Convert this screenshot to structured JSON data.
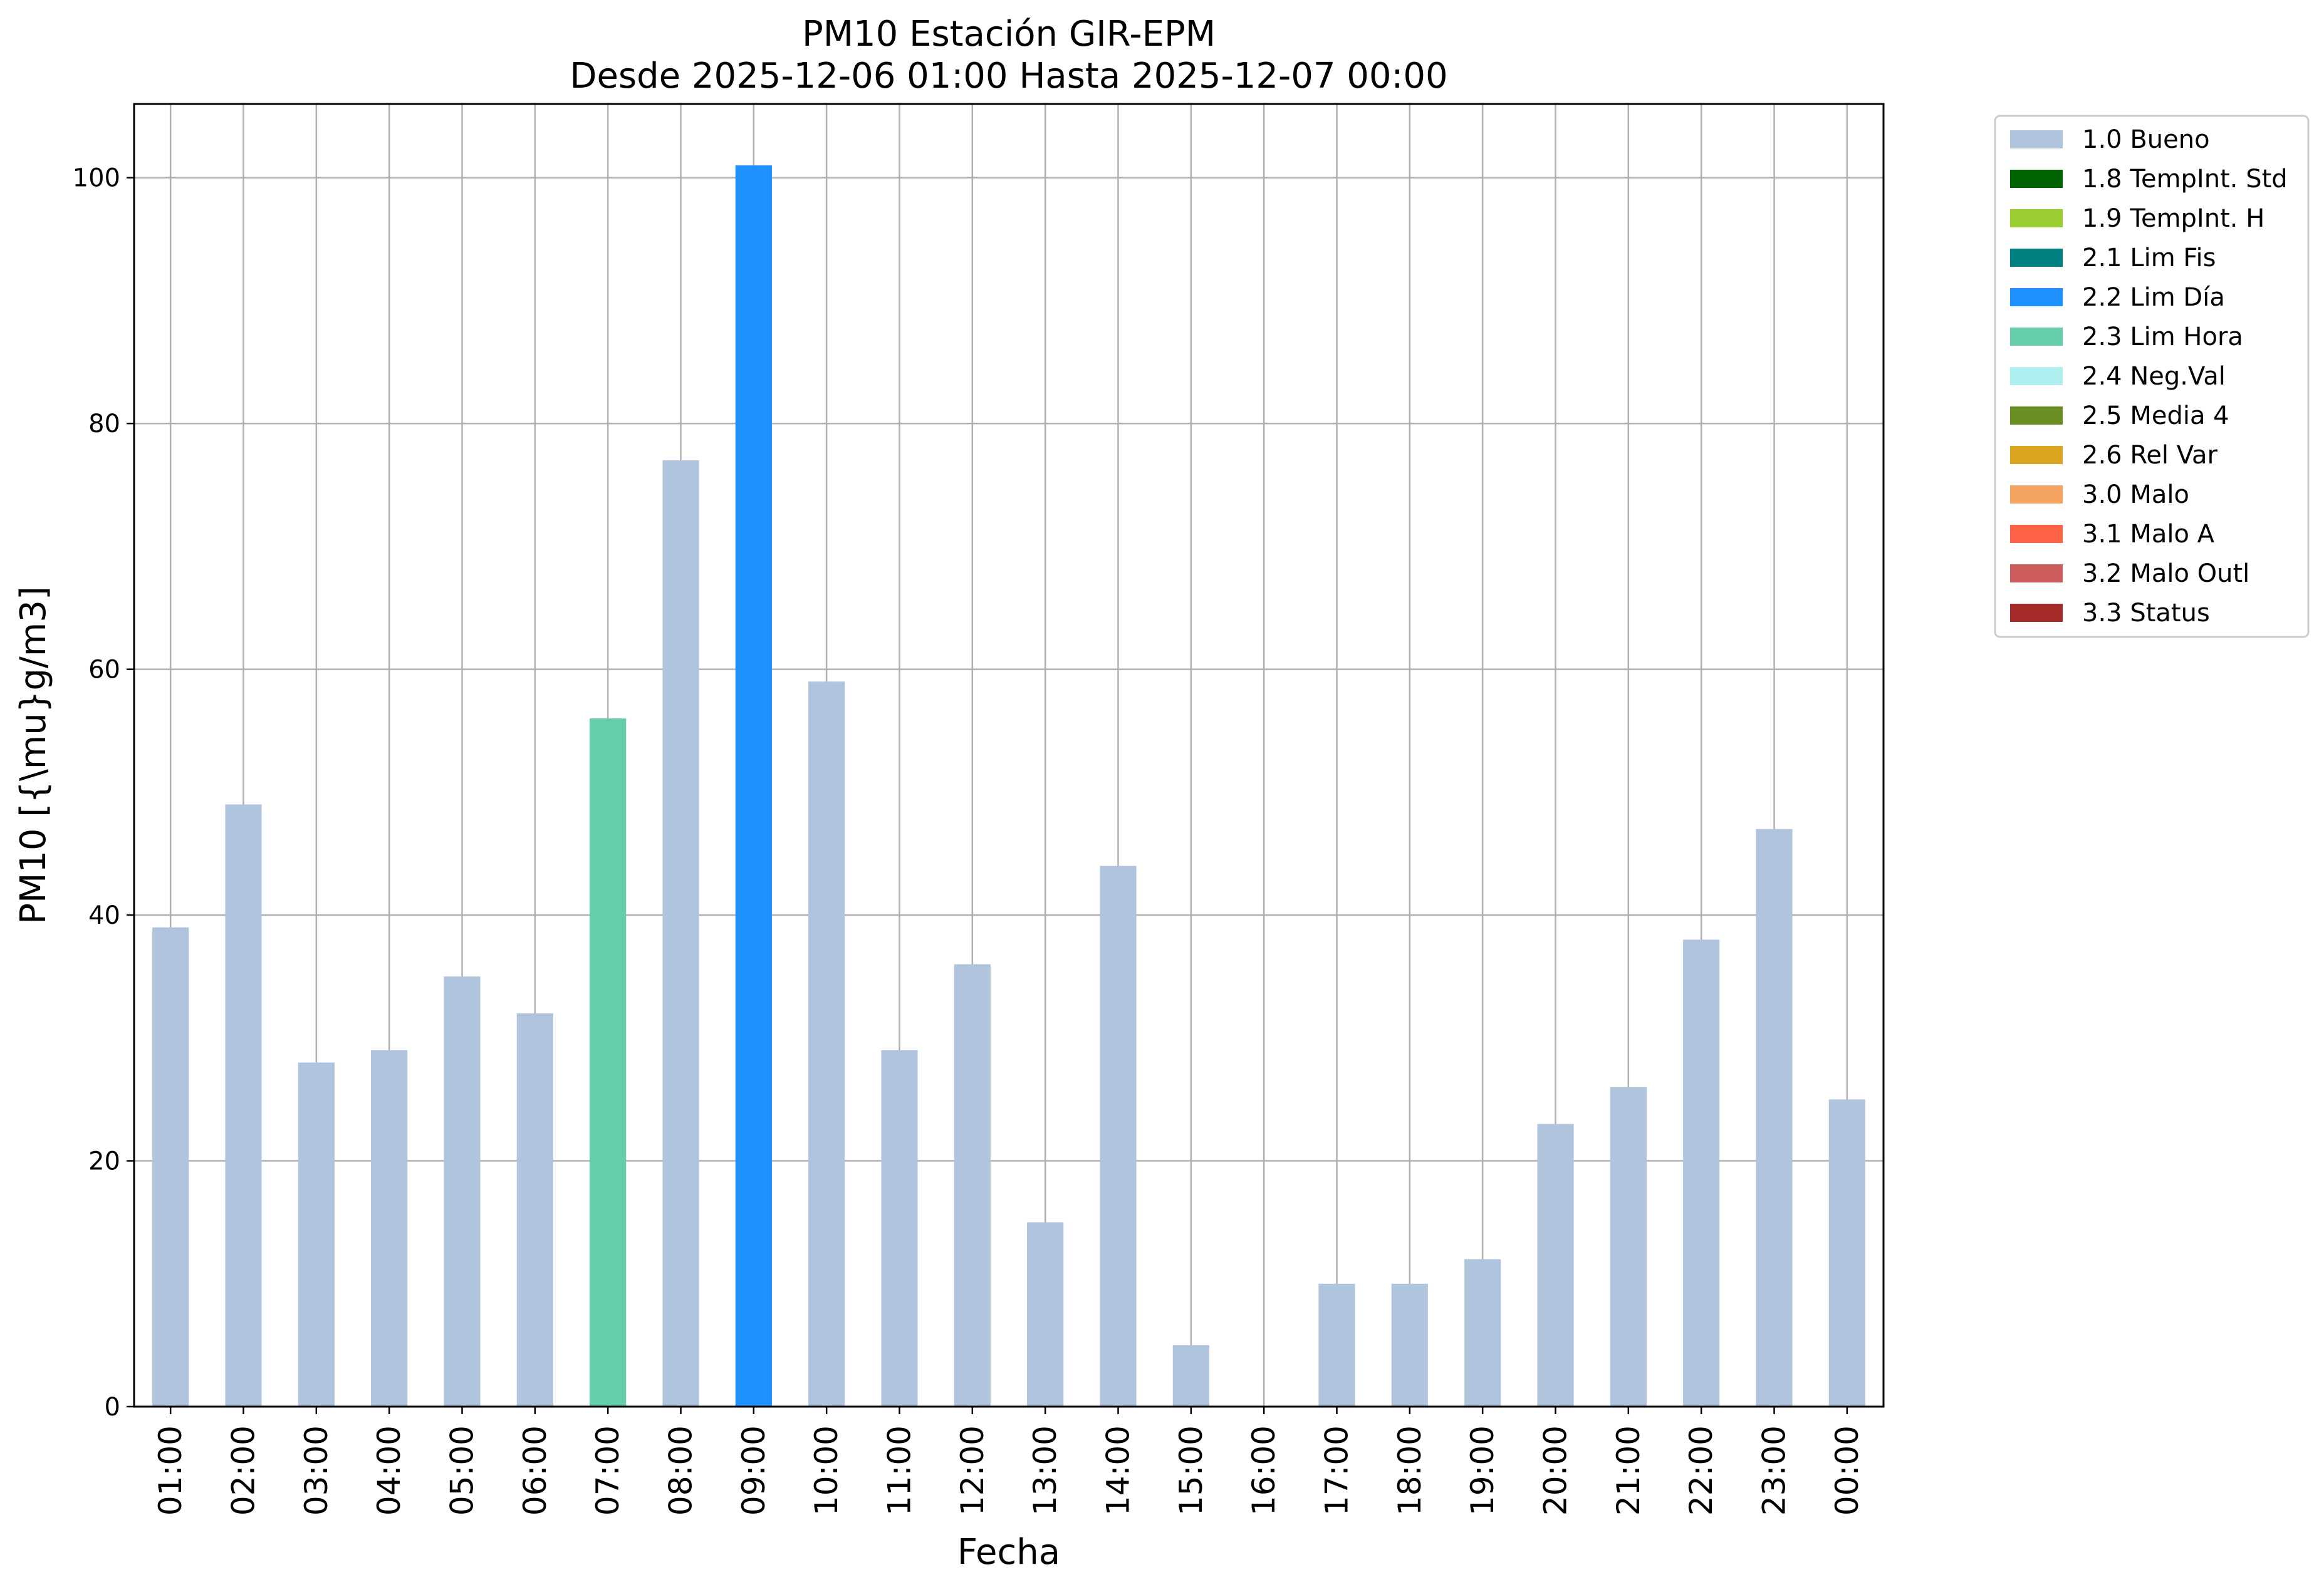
{
  "chart_data": {
    "type": "bar",
    "title": "PM10 Estación GIR-EPM",
    "subtitle": "Desde 2025-12-06 01:00 Hasta 2025-12-07 00:00",
    "xlabel": "Fecha",
    "ylabel": "PM10 [{\\mu}g/m3]",
    "ylim": [
      0,
      106
    ],
    "yticks": [
      "0",
      "20",
      "40",
      "60",
      "80",
      "100"
    ],
    "grid": true,
    "legend_position": "outside top-right",
    "categories": [
      "01:00",
      "02:00",
      "03:00",
      "04:00",
      "05:00",
      "06:00",
      "07:00",
      "08:00",
      "09:00",
      "10:00",
      "11:00",
      "12:00",
      "13:00",
      "14:00",
      "15:00",
      "16:00",
      "17:00",
      "18:00",
      "19:00",
      "20:00",
      "21:00",
      "22:00",
      "23:00",
      "00:00"
    ],
    "values": [
      39,
      49,
      28,
      29,
      35,
      32,
      56,
      77,
      101,
      59,
      29,
      36,
      15,
      44,
      5,
      0,
      10,
      10,
      12,
      23,
      26,
      38,
      47,
      25
    ],
    "flags": [
      "1.0 Bueno",
      "1.0 Bueno",
      "1.0 Bueno",
      "1.0 Bueno",
      "1.0 Bueno",
      "1.0 Bueno",
      "2.3 Lim Hora",
      "1.0 Bueno",
      "2.2 Lim Día",
      "1.0 Bueno",
      "1.0 Bueno",
      "1.0 Bueno",
      "1.0 Bueno",
      "1.0 Bueno",
      "1.0 Bueno",
      "1.0 Bueno",
      "1.0 Bueno",
      "1.0 Bueno",
      "1.0 Bueno",
      "1.0 Bueno",
      "1.0 Bueno",
      "1.0 Bueno",
      "1.0 Bueno",
      "1.0 Bueno"
    ],
    "legend": [
      {
        "label": "1.0 Bueno",
        "color": "#b0c4de"
      },
      {
        "label": "1.8 TempInt. Std",
        "color": "#006400"
      },
      {
        "label": "1.9 TempInt. H",
        "color": "#9acd32"
      },
      {
        "label": "2.1 Lim Fis",
        "color": "#008080"
      },
      {
        "label": "2.2 Lim Día",
        "color": "#1e90ff"
      },
      {
        "label": "2.3 Lim Hora",
        "color": "#66cdaa"
      },
      {
        "label": "2.4 Neg.Val",
        "color": "#afeeee"
      },
      {
        "label": "2.5 Media 4",
        "color": "#6b8e23"
      },
      {
        "label": "2.6 Rel Var",
        "color": "#daa520"
      },
      {
        "label": "3.0 Malo",
        "color": "#f4a460"
      },
      {
        "label": "3.1 Malo A",
        "color": "#ff6347"
      },
      {
        "label": "3.2 Malo Outl",
        "color": "#cd5c5c"
      },
      {
        "label": "3.3 Status",
        "color": "#a52a2a"
      }
    ]
  }
}
